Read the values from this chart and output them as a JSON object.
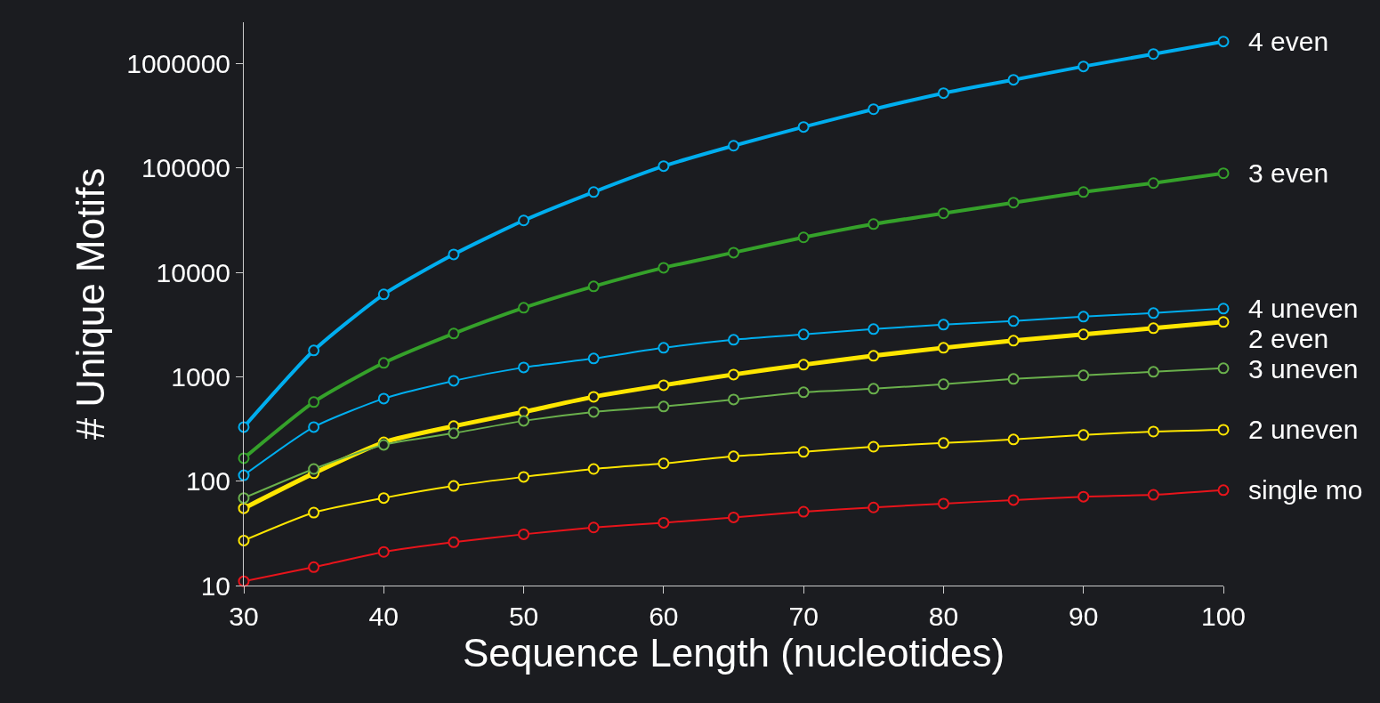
{
  "chart_data": {
    "type": "line",
    "xlabel": "Sequence Length (nucleotides)",
    "ylabel": "# Unique Motifs",
    "x": [
      30,
      35,
      40,
      45,
      50,
      55,
      60,
      65,
      70,
      75,
      80,
      85,
      90,
      95,
      100
    ],
    "series": [
      {
        "name": "4 even",
        "color": "#00aeef",
        "values": [
          330,
          1790,
          6170,
          14900,
          31500,
          59000,
          104500,
          164000,
          248000,
          367000,
          523000,
          702000,
          943000,
          1240000,
          1634000
        ]
      },
      {
        "name": "3 even",
        "color": "#35a12a",
        "values": [
          166,
          573,
          1360,
          2600,
          4590,
          7360,
          11100,
          15500,
          21700,
          29100,
          36900,
          46700,
          59000,
          71900,
          89300
        ]
      },
      {
        "name": "4 uneven",
        "color": "#00aeef",
        "values": [
          114,
          330,
          619,
          917,
          1231,
          1500,
          1897,
          2265,
          2547,
          2866,
          3162,
          3420,
          3775,
          4083,
          4506
        ]
      },
      {
        "name": "2 even",
        "color": "#ffe600",
        "values": [
          55,
          119,
          236,
          337,
          461,
          644,
          831,
          1052,
          1306,
          1590,
          1897,
          2220,
          2547,
          2924,
          3357
        ]
      },
      {
        "name": "3 uneven",
        "color": "#6ab04c",
        "values": [
          69,
          131,
          223,
          288,
          379,
          461,
          519,
          607,
          711,
          769,
          848,
          955,
          1032,
          1117,
          1208
        ]
      },
      {
        "name": "2 uneven",
        "color": "#ffe600",
        "values": [
          27,
          50,
          69,
          90,
          110,
          131,
          148,
          173,
          191,
          214,
          232,
          251,
          277,
          299,
          311
        ]
      },
      {
        "name": "single mo",
        "color": "#e8141b",
        "values": [
          11,
          15,
          21,
          26,
          31,
          36,
          40,
          45,
          51,
          56,
          61,
          66,
          71,
          74,
          82
        ]
      }
    ],
    "log": "y",
    "xlim": [
      30,
      100
    ],
    "xticks": [
      30,
      40,
      50,
      60,
      70,
      80,
      90,
      100
    ],
    "ylim": [
      10,
      2500000
    ],
    "yticks": [
      10,
      100,
      1000,
      10000,
      100000,
      1000000
    ],
    "grid": false,
    "legend": false,
    "marker": "circle",
    "line_style": "solid"
  }
}
